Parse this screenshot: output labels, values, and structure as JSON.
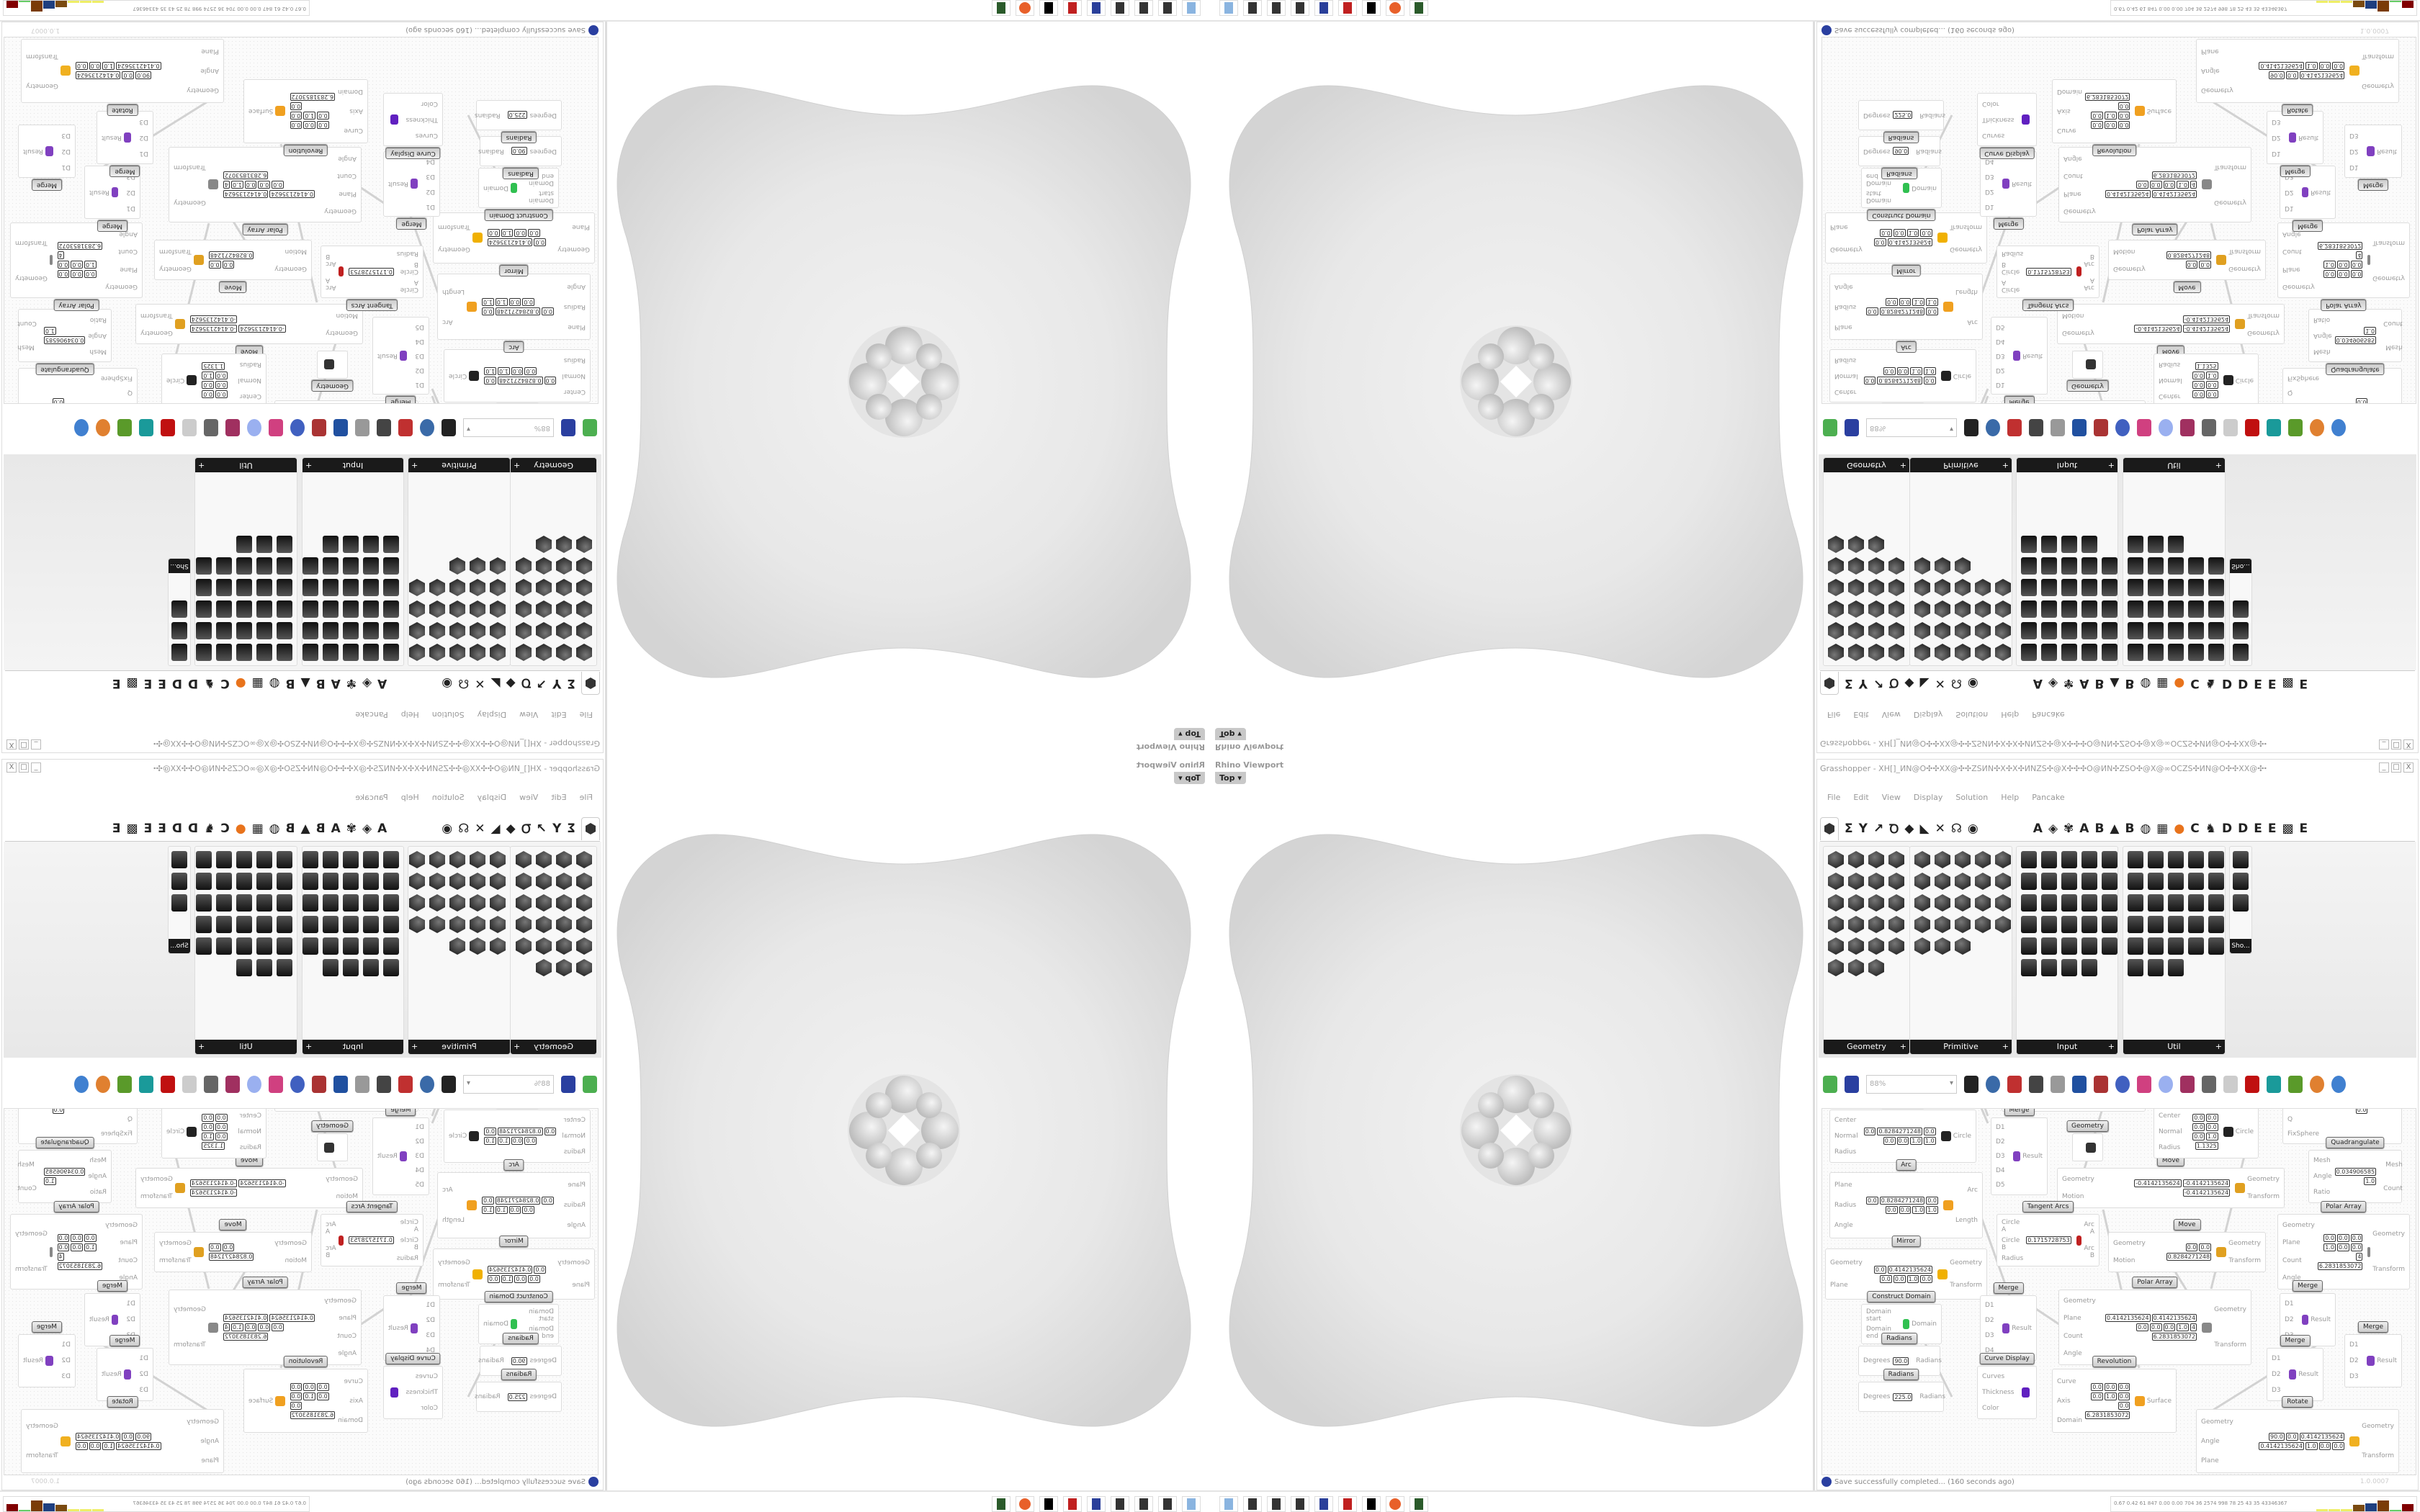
{
  "viewport": {
    "title": "Rhino Viewport",
    "view": "Top",
    "view_arrow": "▾"
  },
  "window": {
    "title": "Grasshopper - XH[]_ИN@O✣✣XX@✣✣ZSИN✣X✣X✣ИNZS✣@X✣✣✣O@ИN✣ZSO✣@X@∞OCZS✣ИN@O✣✣XX@✣✣ZSИN✣X✣X✣ИNZS✣@X✣✣✣O@ИN",
    "buttons": [
      "_",
      "□",
      "X"
    ]
  },
  "menu": [
    "File",
    "Edit",
    "View",
    "Display",
    "Solution",
    "Help",
    "Pancake"
  ],
  "tabs": [
    "Σ",
    "Y",
    "↗",
    "Ꝺ",
    "◆",
    "◣",
    "✕",
    "☊",
    "◉",
    "A",
    "◈",
    "✾",
    "A",
    "B",
    "▲",
    "B",
    "◍",
    "▦",
    "●",
    "C",
    "♞",
    "D",
    "D",
    "E",
    "E",
    "▩",
    "E"
  ],
  "panels": [
    {
      "label": "Geometry",
      "expand": "+"
    },
    {
      "label": "Primitive",
      "expand": "+"
    },
    {
      "label": "Input",
      "expand": "+"
    },
    {
      "label": "Util",
      "expand": "+"
    }
  ],
  "panel_overflow": "Sho...",
  "toolbar": {
    "zoom": "88%"
  },
  "components": [
    {
      "label": "Sphere",
      "inputs": [
        "Base",
        "Radius"
      ],
      "outputs": [
        "Sphere"
      ],
      "values": [
        "0.0",
        "0.0",
        "0.0",
        "0.0",
        "0.0",
        "1.0",
        "0.4142135624"
      ],
      "icon": "sphere-icon"
    },
    {
      "label": "Circle CNR",
      "inputs": [
        "Center",
        "Normal",
        "Radius"
      ],
      "outputs": [
        "Circle"
      ],
      "values": [
        "0.0",
        "0.0",
        "0.0",
        "0.0",
        "0.0",
        "1.0",
        "1.0"
      ],
      "icon": "circle-icon"
    },
    {
      "label": "Circle CNR",
      "inputs": [
        "Center",
        "Normal",
        "Radius"
      ],
      "outputs": [
        "Circle"
      ],
      "values": [
        "0.0",
        "0.8284271248",
        "0.0",
        "0.0",
        "0.0",
        "1.0",
        "1.0"
      ],
      "icon": "circle-icon"
    },
    {
      "label": "Arc",
      "inputs": [
        "Plane",
        "Radius",
        "Angle"
      ],
      "outputs": [
        "Arc",
        "Length"
      ],
      "values": [
        "0.0",
        "0.8284271248",
        "0.0",
        "0.0",
        "0.0",
        "1.0",
        "1.0"
      ],
      "icon": "arc-icon"
    },
    {
      "label": "Box Array",
      "inputs": [
        "Geometry",
        "Cell",
        "X Count",
        "Y Count",
        "Z Count"
      ],
      "outputs": [
        "Geometry",
        "Transform"
      ],
      "values": [
        "0.0",
        "0.0",
        "0.0",
        "0.0",
        "0.0",
        "1.0",
        "0.0",
        "0.8284271248",
        "0.0",
        "0.8284271248",
        "0.0",
        "0.8284271248",
        "2",
        "2",
        "2"
      ],
      "icon": "box-array-icon"
    },
    {
      "label": "Merge",
      "inputs": [
        "D1",
        "D2",
        "D3",
        "D4",
        "D5"
      ],
      "outputs": [
        "Result"
      ],
      "values": [],
      "icon": "merge-icon"
    },
    {
      "label": "Geometry",
      "inputs": [],
      "outputs": [],
      "values": [],
      "icon": "geometry-param-icon"
    },
    {
      "label": "Move",
      "inputs": [
        "Geometry",
        "Motion"
      ],
      "outputs": [
        "Geometry",
        "Transform"
      ],
      "values": [
        "-0.4142135624",
        "-0.4142135624",
        "-0.4142135624"
      ],
      "icon": "move-icon"
    },
    {
      "label": "Tangent Arcs",
      "inputs": [
        "Circle A",
        "Circle B",
        "Radius"
      ],
      "outputs": [
        "Arc A",
        "Arc B"
      ],
      "values": [
        "0.1715728753"
      ],
      "icon": "tangent-arcs-icon"
    },
    {
      "label": "InfoGlasses",
      "inputs": [],
      "outputs": [],
      "values": [],
      "icon": "infoglasses-icon"
    },
    {
      "label": "MÖbius Transformation",
      "inputs": [
        "Geometry",
        "Circle",
        "T",
        "Q",
        "FixSphere"
      ],
      "outputs": [
        "Geometry"
      ],
      "values": [
        "1.5707963268",
        "0.0"
      ],
      "icon": "mobius-icon"
    },
    {
      "label": "Circle CNR",
      "inputs": [
        "Center",
        "Normal",
        "Radius"
      ],
      "outputs": [
        "Circle"
      ],
      "values": [
        "0.0",
        "0.0",
        "0.0",
        "0.0",
        "0.0",
        "1.0",
        "1.1325"
      ],
      "icon": "circle-icon"
    },
    {
      "label": "Quadrangulate",
      "inputs": [
        "Mesh",
        "Angle",
        "Ratio"
      ],
      "outputs": [
        "Mesh",
        "Count"
      ],
      "values": [
        "0.034906585",
        "1.0"
      ],
      "icon": "quadrangulate-icon"
    },
    {
      "label": "Polar Array",
      "inputs": [
        "Geometry",
        "Plane",
        "Count",
        "Angle"
      ],
      "outputs": [
        "Geometry",
        "Transform"
      ],
      "values": [
        "0.0",
        "0.0",
        "0.0",
        "1.0",
        "0.0",
        "0.0",
        "4",
        "6.2831853072"
      ],
      "icon": "polar-array-icon"
    },
    {
      "label": "Mirror",
      "inputs": [
        "Geometry",
        "Plane"
      ],
      "outputs": [
        "Geometry",
        "Transform"
      ],
      "values": [
        "0.0",
        "0.4142135624",
        "0.0",
        "0.0",
        "1.0",
        "0.0"
      ],
      "icon": "mirror-icon"
    },
    {
      "label": "Construct Domain",
      "inputs": [
        "Domain start",
        "Domain end"
      ],
      "outputs": [
        "Domain"
      ],
      "values": [],
      "icon": "domain-icon"
    },
    {
      "label": "Radians",
      "inputs": [
        "Degrees"
      ],
      "outputs": [
        "Radians"
      ],
      "values": [
        "90.0"
      ],
      "icon": "radians-icon"
    },
    {
      "label": "Radians",
      "inputs": [
        "Degrees"
      ],
      "outputs": [
        "Radians"
      ],
      "values": [
        "225.0"
      ],
      "icon": "radians-icon"
    },
    {
      "label": "Merge",
      "inputs": [
        "D1",
        "D2",
        "D3",
        "D4"
      ],
      "outputs": [
        "Result"
      ],
      "values": [],
      "icon": "merge-icon"
    },
    {
      "label": "Curve Display",
      "inputs": [
        "Curves",
        "Thickness",
        "Color"
      ],
      "outputs": [],
      "values": [],
      "icon": "curve-display-icon"
    },
    {
      "label": "Polar Array",
      "inputs": [
        "Geometry",
        "Plane",
        "Count",
        "Angle"
      ],
      "outputs": [
        "Geometry",
        "Transform"
      ],
      "values": [
        "0.4142135624",
        "0.4142135624",
        "0.0",
        "0.0",
        "0.0",
        "1.0",
        "4",
        "6.2831853072"
      ],
      "icon": "polar-array-icon"
    },
    {
      "label": "Revolution",
      "inputs": [
        "Curve",
        "Axis",
        "Domain"
      ],
      "outputs": [
        "Surface"
      ],
      "values": [
        "0.0",
        "0.0",
        "0.0",
        "0.0",
        "1.0",
        "0.0",
        "0.0",
        "6.2831853072"
      ],
      "icon": "revolution-icon"
    },
    {
      "label": "Move",
      "inputs": [
        "Geometry",
        "Motion"
      ],
      "outputs": [
        "Geometry",
        "Transform"
      ],
      "values": [
        "0.0",
        "0.0",
        "0.8284271248"
      ],
      "icon": "move-icon"
    },
    {
      "label": "Merge",
      "inputs": [
        "D1",
        "D2",
        "D3"
      ],
      "outputs": [
        "Result"
      ],
      "values": [],
      "icon": "merge-icon"
    },
    {
      "label": "Merge",
      "inputs": [
        "D1",
        "D2",
        "D3"
      ],
      "outputs": [
        "Result"
      ],
      "values": [],
      "icon": "merge-icon"
    },
    {
      "label": "Merge",
      "inputs": [
        "D1",
        "D2",
        "D3"
      ],
      "outputs": [
        "Result"
      ],
      "values": [],
      "icon": "merge-icon"
    },
    {
      "label": "Rotate",
      "inputs": [
        "Geometry",
        "Angle",
        "Plane"
      ],
      "outputs": [
        "Geometry",
        "Transform"
      ],
      "values": [
        "90.0",
        "0.0",
        "0.4142135624",
        "0.4142135624",
        "1.0",
        "0.0",
        "0.0"
      ],
      "icon": "rotate-icon"
    }
  ],
  "status": {
    "message": "Save successfully completed... (160 seconds ago)",
    "version": "1.0.0007"
  },
  "taskbar": {
    "stats": "0.67 0.42 61 847 0.00 0.00 704 36 2574 998 78 25 43 35 43346367",
    "icons": [
      "calculator-icon",
      "app-icon",
      "app-icon",
      "app-icon",
      "floppy-64-icon",
      "red-app-icon",
      "wolf-icon",
      "firefox-icon",
      "monitor-icon"
    ],
    "colors": {
      "accent": "#2a3fa0",
      "bar1": "#7a4a10",
      "bar2": "#1e3f80",
      "bar3": "#7a3c08",
      "bar4": "#800000"
    }
  }
}
